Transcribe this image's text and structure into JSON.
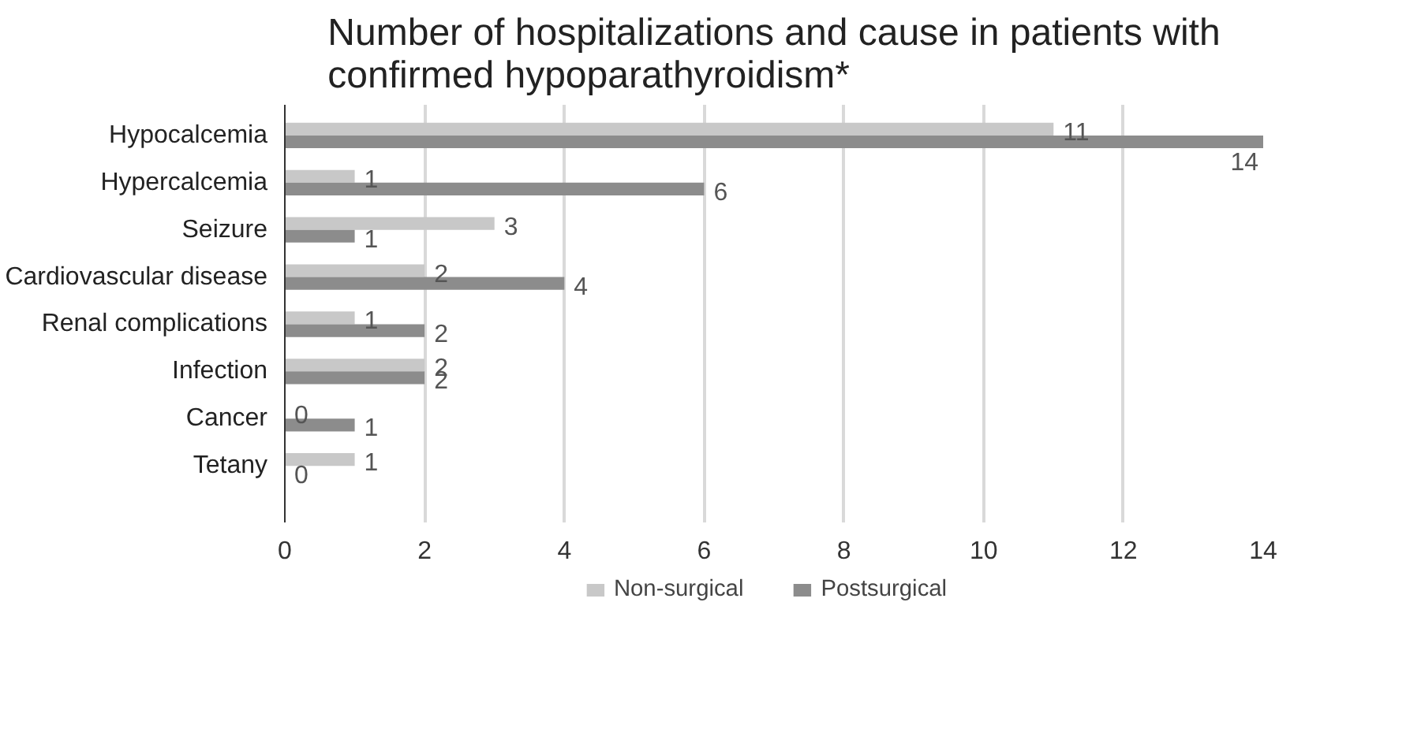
{
  "chart_data": {
    "type": "bar",
    "orientation": "horizontal",
    "title": "Number of hospitalizations and cause in patients with\nconfirmed hypoparathyroidism*",
    "categories": [
      "Hypocalcemia",
      "Hypercalcemia",
      "Seizure",
      "Cardiovascular disease",
      "Renal complications",
      "Infection",
      "Cancer",
      "Tetany"
    ],
    "series": [
      {
        "name": "Non-surgical",
        "color": "#c8c8c8",
        "values": [
          11,
          1,
          3,
          2,
          1,
          2,
          0,
          1
        ]
      },
      {
        "name": "Postsurgical",
        "color": "#8c8c8c",
        "values": [
          14,
          6,
          1,
          4,
          2,
          2,
          1,
          0
        ]
      }
    ],
    "xlim": [
      0,
      14
    ],
    "xticks": [
      0,
      2,
      4,
      6,
      8,
      10,
      12,
      14
    ],
    "grid": "x",
    "legend": "bottom",
    "data_labels": true
  }
}
